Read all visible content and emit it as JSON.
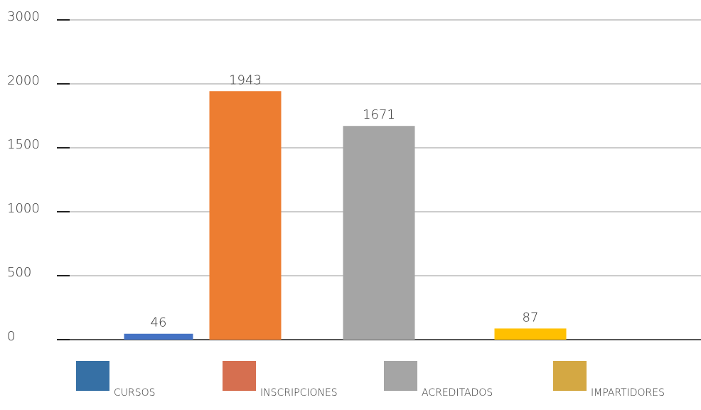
{
  "chart_data": {
    "type": "bar",
    "categories": [
      "CURSOS",
      "INSCRIPCIONES",
      "ACREDITADOS",
      "IMPARTIDORES"
    ],
    "values": [
      46,
      1943,
      1671,
      87
    ],
    "colors": [
      "#4472c4",
      "#ed7d31",
      "#a5a5a5",
      "#ffc000"
    ],
    "legend_colors": [
      "#3670a5",
      "#d66f50",
      "#a5a5a5",
      "#d4a843"
    ],
    "ylim": [
      0,
      3000
    ],
    "yticks": [
      0,
      500,
      1000,
      1500,
      2000,
      3000
    ],
    "grid": true
  }
}
